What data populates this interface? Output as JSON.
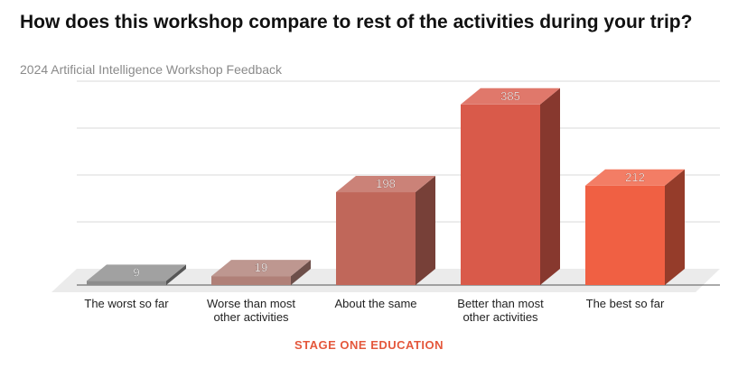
{
  "header": {
    "title": "How does this workshop compare to rest of the activities during your trip?",
    "subtitle": "2024 Artificial Intelligence Workshop Feedback"
  },
  "footer": {
    "text": "STAGE ONE EDUCATION",
    "color": "#e4583c"
  },
  "chart_data": {
    "type": "bar",
    "style": "3d",
    "categories": [
      [
        "The worst so far"
      ],
      [
        "Worse than most",
        "other activities"
      ],
      [
        "About the same"
      ],
      [
        "Better than most",
        "other activities"
      ],
      [
        "The best so far"
      ]
    ],
    "values": [
      9,
      19,
      198,
      385,
      212
    ],
    "value_labels": [
      "9",
      "19",
      "198",
      "385",
      "212"
    ],
    "colors": [
      "#8c8c8c",
      "#b08078",
      "#c0675a",
      "#d95a4a",
      "#f06043"
    ],
    "ylim": [
      0,
      400
    ],
    "grid": true,
    "legend": "none"
  }
}
